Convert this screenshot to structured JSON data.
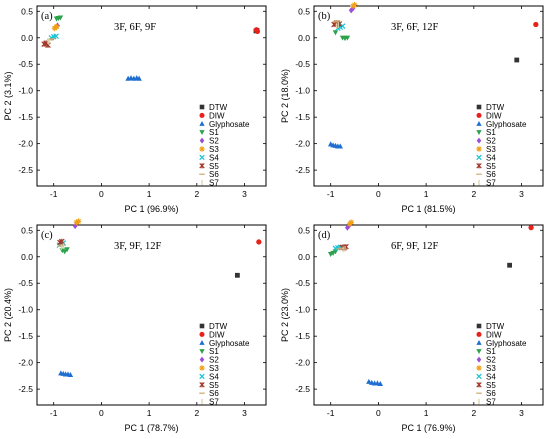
{
  "figure": {
    "legend": {
      "entries": [
        {
          "name": "DTW",
          "marker": "square",
          "color": "#333333"
        },
        {
          "name": "DIW",
          "marker": "circle",
          "color": "#e8211a"
        },
        {
          "name": "Glyphosate",
          "marker": "triangle-up",
          "color": "#1f6fd1"
        },
        {
          "name": "S1",
          "marker": "triangle-down",
          "color": "#2ba34b"
        },
        {
          "name": "S2",
          "marker": "diamond",
          "color": "#9a4fd6"
        },
        {
          "name": "S3",
          "marker": "star",
          "color": "#f2a017"
        },
        {
          "name": "S4",
          "marker": "x",
          "color": "#19c2d6"
        },
        {
          "name": "S5",
          "marker": "star-x",
          "color": "#a0392a"
        },
        {
          "name": "S6",
          "marker": "dash",
          "color": "#c8a868"
        },
        {
          "name": "S7",
          "marker": "vline",
          "color": "#ddd0a8"
        }
      ]
    }
  },
  "chart_data": [
    {
      "type": "scatter",
      "panel": "(a)",
      "features": "3F, 6F, 9F",
      "xlabel": "PC 1 (96.9%)",
      "ylabel": "PC 2 (3.1%)",
      "xlim": [
        -1.35,
        3.45
      ],
      "ylim": [
        -2.8,
        0.6
      ],
      "xticks": [
        -1,
        0,
        1,
        2,
        3
      ],
      "yticks": [
        0.5,
        0.0,
        -0.5,
        -1.0,
        -1.5,
        -2.0,
        -2.5
      ],
      "legend_position": "right",
      "series": [
        {
          "name": "DTW",
          "points": [
            [
              3.24,
              0.13
            ],
            [
              3.26,
              0.14
            ]
          ]
        },
        {
          "name": "DIW",
          "points": [
            [
              3.25,
              0.15
            ],
            [
              3.27,
              0.12
            ]
          ]
        },
        {
          "name": "Glyphosate",
          "points": [
            [
              0.56,
              -0.77
            ],
            [
              0.62,
              -0.76
            ],
            [
              0.68,
              -0.77
            ],
            [
              0.74,
              -0.76
            ],
            [
              0.79,
              -0.77
            ]
          ]
        },
        {
          "name": "S1",
          "points": [
            [
              -0.94,
              0.36
            ],
            [
              -0.9,
              0.37
            ],
            [
              -0.86,
              0.38
            ]
          ]
        },
        {
          "name": "S2",
          "points": [
            [
              -0.95,
              0.2
            ],
            [
              -0.92,
              0.23
            ]
          ]
        },
        {
          "name": "S3",
          "points": [
            [
              -0.98,
              0.18
            ],
            [
              -0.94,
              0.21
            ]
          ]
        },
        {
          "name": "S4",
          "points": [
            [
              -1.05,
              0.0
            ],
            [
              -1.0,
              0.02
            ],
            [
              -0.95,
              0.03
            ]
          ]
        },
        {
          "name": "S5",
          "points": [
            [
              -1.2,
              -0.12
            ],
            [
              -1.16,
              -0.1
            ],
            [
              -1.12,
              -0.14
            ]
          ]
        },
        {
          "name": "S6",
          "points": [
            [
              -1.08,
              -0.04
            ],
            [
              -1.04,
              -0.02
            ]
          ]
        },
        {
          "name": "S7",
          "points": [
            [
              -1.12,
              -0.06
            ],
            [
              -1.1,
              -0.08
            ]
          ]
        }
      ]
    },
    {
      "type": "scatter",
      "panel": "(b)",
      "features": "3F, 6F, 12F",
      "xlabel": "PC 1 (81.5%)",
      "ylabel": "PC 2 (18.0%)",
      "xlim": [
        -1.35,
        3.45
      ],
      "ylim": [
        -2.8,
        0.6
      ],
      "xticks": [
        -1,
        0,
        1,
        2,
        3
      ],
      "yticks": [
        0.5,
        0.0,
        -0.5,
        -1.0,
        -1.5,
        -2.0,
        -2.5
      ],
      "legend_position": "right",
      "series": [
        {
          "name": "DTW",
          "points": [
            [
              2.9,
              -0.42
            ]
          ]
        },
        {
          "name": "DIW",
          "points": [
            [
              3.3,
              0.25
            ]
          ]
        },
        {
          "name": "Glyphosate",
          "points": [
            [
              -1.0,
              -2.01
            ],
            [
              -0.95,
              -2.03
            ],
            [
              -0.9,
              -2.04
            ],
            [
              -0.85,
              -2.05
            ],
            [
              -0.8,
              -2.05
            ]
          ]
        },
        {
          "name": "S1",
          "points": [
            [
              -0.75,
              0.0
            ],
            [
              -0.7,
              -0.01
            ],
            [
              -0.65,
              0.0
            ],
            [
              -0.9,
              0.1
            ]
          ]
        },
        {
          "name": "S2",
          "points": [
            [
              -0.57,
              0.52
            ],
            [
              -0.53,
              0.56
            ]
          ]
        },
        {
          "name": "S3",
          "points": [
            [
              -0.53,
              0.6
            ],
            [
              -0.5,
              0.62
            ]
          ]
        },
        {
          "name": "S4",
          "points": [
            [
              -0.85,
              0.18
            ],
            [
              -0.8,
              0.2
            ],
            [
              -0.75,
              0.22
            ]
          ]
        },
        {
          "name": "S5",
          "points": [
            [
              -0.93,
              0.25
            ],
            [
              -0.88,
              0.28
            ],
            [
              -0.82,
              0.26
            ]
          ]
        },
        {
          "name": "S6",
          "points": [
            [
              -0.9,
              0.3
            ],
            [
              -0.86,
              0.32
            ]
          ]
        },
        {
          "name": "S7",
          "points": [
            [
              -0.88,
              0.22
            ],
            [
              -0.84,
              0.24
            ]
          ]
        }
      ]
    },
    {
      "type": "scatter",
      "panel": "(c)",
      "features": "3F, 9F, 12F",
      "xlabel": "PC 1 (78.7%)",
      "ylabel": "PC 2 (20.4%)",
      "xlim": [
        -1.35,
        3.45
      ],
      "ylim": [
        -2.8,
        0.6
      ],
      "xticks": [
        -1,
        0,
        1,
        2,
        3
      ],
      "yticks": [
        0.5,
        0.0,
        -0.5,
        -1.0,
        -1.5,
        -2.0,
        -2.5
      ],
      "legend_position": "right",
      "series": [
        {
          "name": "DTW",
          "points": [
            [
              2.85,
              -0.35
            ]
          ]
        },
        {
          "name": "DIW",
          "points": [
            [
              3.3,
              0.28
            ]
          ]
        },
        {
          "name": "Glyphosate",
          "points": [
            [
              -0.85,
              -2.2
            ],
            [
              -0.8,
              -2.21
            ],
            [
              -0.75,
              -2.22
            ],
            [
              -0.7,
              -2.22
            ],
            [
              -0.65,
              -2.23
            ]
          ]
        },
        {
          "name": "S1",
          "points": [
            [
              -0.82,
              0.12
            ],
            [
              -0.77,
              0.1
            ],
            [
              -0.72,
              0.14
            ]
          ]
        },
        {
          "name": "S2",
          "points": [
            [
              -0.55,
              0.58
            ],
            [
              -0.52,
              0.62
            ]
          ]
        },
        {
          "name": "S3",
          "points": [
            [
              -0.52,
              0.65
            ],
            [
              -0.48,
              0.67
            ]
          ]
        },
        {
          "name": "S4",
          "points": [
            [
              -0.88,
              0.22
            ],
            [
              -0.84,
              0.24
            ],
            [
              -0.8,
              0.26
            ]
          ]
        },
        {
          "name": "S5",
          "points": [
            [
              -0.87,
              0.27
            ],
            [
              -0.83,
              0.29
            ]
          ]
        },
        {
          "name": "S6",
          "points": [
            [
              -0.86,
              0.2
            ],
            [
              -0.82,
              0.22
            ]
          ]
        },
        {
          "name": "S7",
          "points": [
            [
              -0.84,
              0.18
            ],
            [
              -0.8,
              0.2
            ]
          ]
        }
      ]
    },
    {
      "type": "scatter",
      "panel": "(d)",
      "features": "6F, 9F, 12F",
      "xlabel": "PC 1 (76.9%)",
      "ylabel": "PC 2 (23.0%)",
      "xlim": [
        -1.35,
        3.45
      ],
      "ylim": [
        -2.8,
        0.6
      ],
      "xticks": [
        -1,
        0,
        1,
        2,
        3
      ],
      "yticks": [
        0.5,
        0.0,
        -0.5,
        -1.0,
        -1.5,
        -2.0,
        -2.5
      ],
      "legend_position": "right",
      "series": [
        {
          "name": "DTW",
          "points": [
            [
              2.75,
              -0.16
            ]
          ]
        },
        {
          "name": "DIW",
          "points": [
            [
              3.2,
              0.55
            ]
          ]
        },
        {
          "name": "Glyphosate",
          "points": [
            [
              -0.2,
              -2.36
            ],
            [
              -0.14,
              -2.38
            ],
            [
              -0.08,
              -2.39
            ],
            [
              -0.02,
              -2.39
            ],
            [
              0.04,
              -2.4
            ]
          ]
        },
        {
          "name": "S1",
          "points": [
            [
              -1.0,
              0.05
            ],
            [
              -0.95,
              0.07
            ],
            [
              -0.9,
              0.1
            ]
          ]
        },
        {
          "name": "S2",
          "points": [
            [
              -0.65,
              0.55
            ],
            [
              -0.62,
              0.58
            ]
          ]
        },
        {
          "name": "S3",
          "points": [
            [
              -0.6,
              0.62
            ],
            [
              -0.57,
              0.65
            ]
          ]
        },
        {
          "name": "S4",
          "points": [
            [
              -0.9,
              0.16
            ],
            [
              -0.85,
              0.17
            ],
            [
              -0.8,
              0.18
            ]
          ]
        },
        {
          "name": "S5",
          "points": [
            [
              -0.76,
              0.18
            ],
            [
              -0.72,
              0.17
            ],
            [
              -0.68,
              0.19
            ]
          ]
        },
        {
          "name": "S6",
          "points": [
            [
              -0.82,
              0.15
            ],
            [
              -0.78,
              0.16
            ]
          ]
        },
        {
          "name": "S7",
          "points": [
            [
              -0.74,
              0.14
            ],
            [
              -0.7,
              0.15
            ]
          ]
        }
      ]
    }
  ]
}
